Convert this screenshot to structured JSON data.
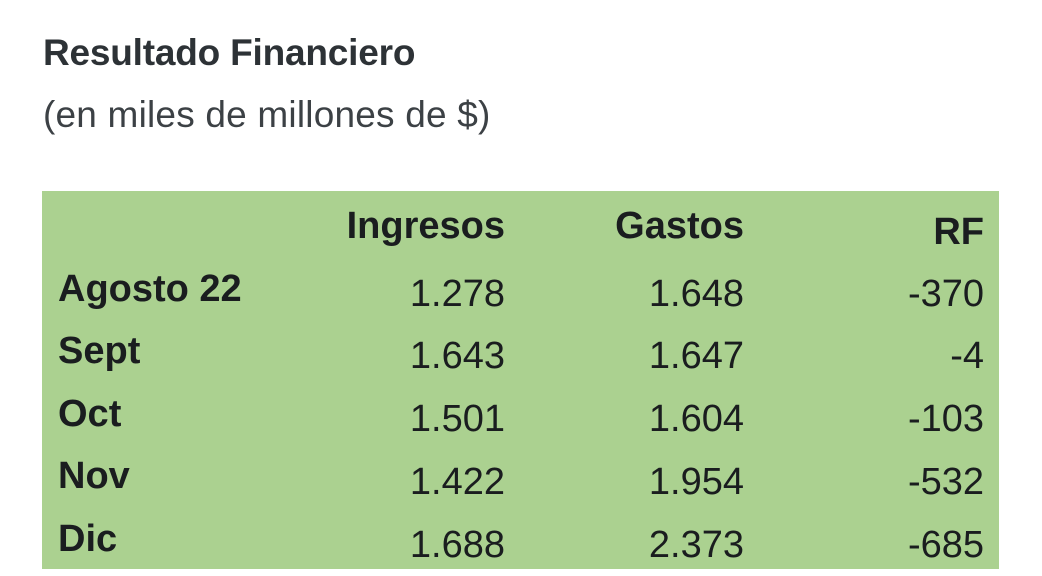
{
  "chart_data": {
    "type": "table",
    "title": "Resultado Financiero",
    "subtitle": "(en miles de millones de $)",
    "columns": [
      "",
      "Ingresos",
      "Gastos",
      "RF"
    ],
    "rows": [
      {
        "label": "Agosto 22",
        "ingresos": "1.278",
        "gastos": "1.648",
        "rf": "-370"
      },
      {
        "label": "Sept",
        "ingresos": "1.643",
        "gastos": "1.647",
        "rf": "-4"
      },
      {
        "label": "Oct",
        "ingresos": "1.501",
        "gastos": "1.604",
        "rf": "-103"
      },
      {
        "label": "Nov",
        "ingresos": "1.422",
        "gastos": "1.954",
        "rf": "-532"
      },
      {
        "label": "Dic",
        "ingresos": "1.688",
        "gastos": "2.373",
        "rf": "-685"
      }
    ]
  },
  "colors": {
    "table_background": "#abd190",
    "text": "#1a1d1f"
  }
}
